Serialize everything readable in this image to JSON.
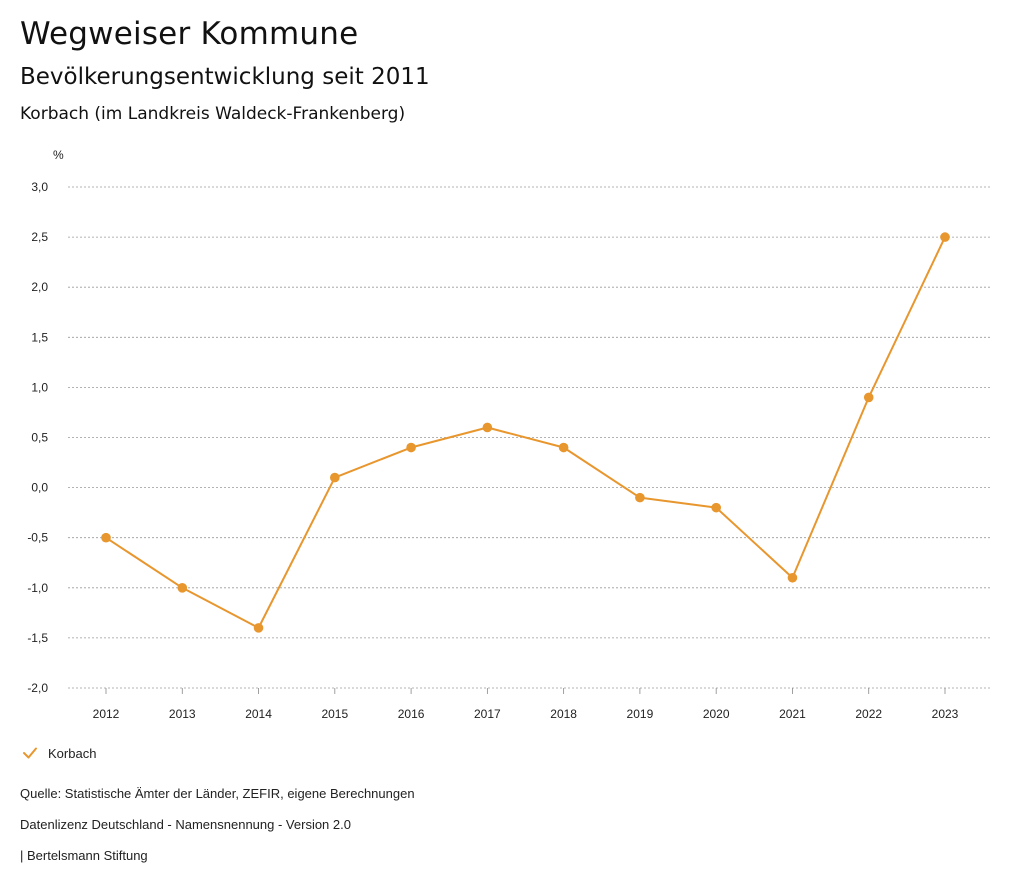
{
  "header": {
    "title": "Wegweiser Kommune",
    "subtitle": "Bevölkerungsentwicklung seit 2011",
    "place": "Korbach (im Landkreis Waldeck-Frankenberg)"
  },
  "chart_data": {
    "type": "line",
    "unit_label": "%",
    "categories": [
      "2012",
      "2013",
      "2014",
      "2015",
      "2016",
      "2017",
      "2018",
      "2019",
      "2020",
      "2021",
      "2022",
      "2023"
    ],
    "series": [
      {
        "name": "Korbach",
        "color": "#e8962e",
        "values": [
          -0.5,
          -1.0,
          -1.4,
          0.1,
          0.4,
          0.6,
          0.4,
          -0.1,
          -0.2,
          -0.9,
          0.9,
          2.5
        ]
      }
    ],
    "ylim": [
      -2.0,
      3.0
    ],
    "yticks": [
      3.0,
      2.5,
      2.0,
      1.5,
      1.0,
      0.5,
      0.0,
      -0.5,
      -1.0,
      -1.5,
      -2.0
    ],
    "ytick_labels": [
      "3,0",
      "2,5",
      "2,0",
      "1,5",
      "1,0",
      "0,5",
      "0,0",
      "-0,5",
      "-1,0",
      "-1,5",
      "-2,0"
    ],
    "grid": true,
    "legend_position": "bottom-left"
  },
  "legend": {
    "label": "Korbach"
  },
  "footer": {
    "source": "Quelle: Statistische Ämter der Länder, ZEFIR, eigene Berechnungen",
    "license": "Datenlizenz Deutschland - Namensnennung - Version 2.0",
    "brand": "| Bertelsmann Stiftung"
  }
}
